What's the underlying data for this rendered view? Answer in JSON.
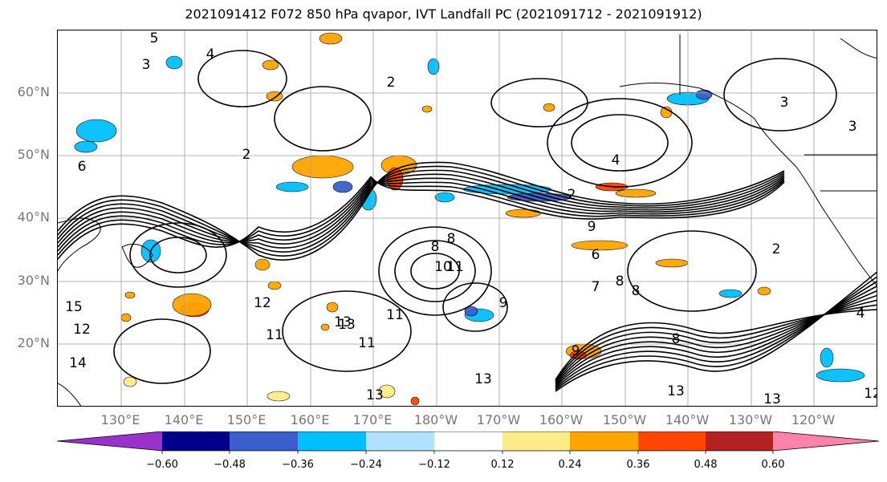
{
  "title": "2021091412 F072 850 hPa qvapor, IVT Landfall PC (2021091712 - 2021091912)",
  "lat_labels": [
    "60°N",
    "50°N",
    "40°N",
    "30°N",
    "20°N"
  ],
  "lon_labels": [
    "130°E",
    "140°E",
    "150°E",
    "160°E",
    "170°E",
    "180°W",
    "170°W",
    "160°W",
    "150°W",
    "140°W",
    "130°W",
    "120°W"
  ],
  "contour_labels": [
    "5",
    "3",
    "4",
    "2",
    "3",
    "3",
    "6",
    "2",
    "4",
    "2",
    "8",
    "8",
    "9",
    "9",
    "6",
    "12",
    "12",
    "13",
    "11",
    "13",
    "11",
    "13",
    "13",
    "13",
    "13",
    "11",
    "10",
    "7",
    "8",
    "8",
    "8",
    "9",
    "2",
    "4",
    "12",
    "14",
    "15",
    "11"
  ],
  "colorbar": {
    "ticks": [
      "−0.60",
      "−0.48",
      "−0.36",
      "−0.24",
      "−0.12",
      "0.12",
      "0.24",
      "0.36",
      "0.48",
      "0.60"
    ],
    "colors": [
      "#9932cc",
      "#00008b",
      "#3a5fcd",
      "#00bfff",
      "#b0e2ff",
      "#ffffff",
      "#ffeb8a",
      "#ffa500",
      "#ff4500",
      "#b22222",
      "#ff82ab"
    ]
  },
  "colors": {
    "contour": "#000000",
    "grid": "#9e9e9e",
    "coast": "#000000",
    "axis_label": "#777777"
  }
}
